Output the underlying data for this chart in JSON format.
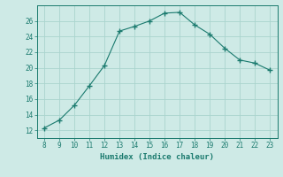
{
  "x": [
    8,
    9,
    10,
    11,
    12,
    13,
    14,
    15,
    16,
    17,
    18,
    19,
    20,
    21,
    22,
    23
  ],
  "y": [
    12.3,
    13.3,
    15.2,
    17.7,
    20.3,
    24.7,
    25.3,
    26.0,
    27.0,
    27.1,
    25.5,
    24.3,
    22.5,
    21.0,
    20.6,
    19.7
  ],
  "xlabel": "Humidex (Indice chaleur)",
  "xlim": [
    7.5,
    23.5
  ],
  "ylim": [
    11,
    28
  ],
  "yticks": [
    12,
    14,
    16,
    18,
    20,
    22,
    24,
    26
  ],
  "xticks": [
    8,
    9,
    10,
    11,
    12,
    13,
    14,
    15,
    16,
    17,
    18,
    19,
    20,
    21,
    22,
    23
  ],
  "line_color": "#1a7a6e",
  "bg_color": "#ceeae6",
  "grid_color": "#aad4ce",
  "tick_color": "#1a7a6e",
  "label_color": "#1a7a6e"
}
